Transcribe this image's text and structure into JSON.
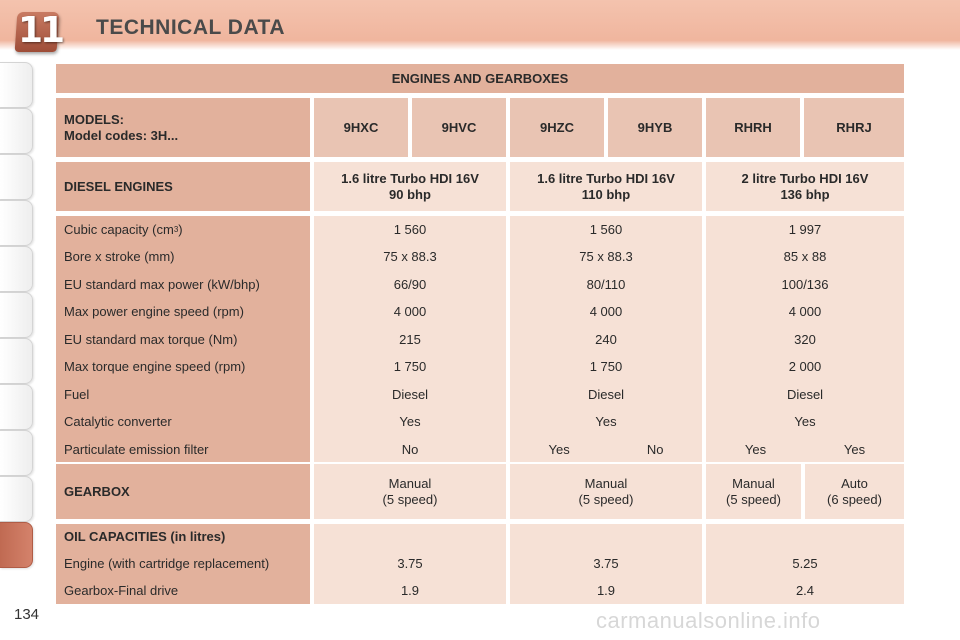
{
  "header": {
    "chapter_number": "11",
    "title": "TECHNICAL DATA"
  },
  "page_number": "134",
  "watermark": "carmanualsonline.info",
  "table": {
    "caption": "ENGINES AND GEARBOXES",
    "models_label_1": "MODELS:",
    "models_label_2": "Model codes: 3H...",
    "model_codes": [
      "9HXC",
      "9HVC",
      "9HZC",
      "9HYB",
      "RHRH",
      "RHRJ"
    ],
    "diesel_label": "DIESEL ENGINES",
    "engines": [
      {
        "name": "1.6 litre Turbo HDI 16V",
        "power": "90 bhp"
      },
      {
        "name": "1.6 litre Turbo HDI 16V",
        "power": "110 bhp"
      },
      {
        "name": "2 litre Turbo HDI 16V",
        "power": "136 bhp"
      }
    ],
    "spec_labels": {
      "cubic": "Cubic capacity (cm",
      "cubic_sup": "3",
      "cubic_end": ")",
      "bore": "Bore x stroke (mm)",
      "power": "EU standard max power (kW/bhp)",
      "power_speed": "Max power engine speed (rpm)",
      "torque": "EU standard max torque (Nm)",
      "torque_speed": "Max torque engine speed (rpm)",
      "fuel": "Fuel",
      "catalytic": "Catalytic converter",
      "particulate": "Particulate emission filter"
    },
    "spec_values": [
      {
        "cubic": "1 560",
        "bore": "75 x 88.3",
        "power": "66/90",
        "power_speed": "4 000",
        "torque": "215",
        "torque_speed": "1 750",
        "fuel": "Diesel",
        "catalytic": "Yes"
      },
      {
        "cubic": "1 560",
        "bore": "75 x 88.3",
        "power": "80/110",
        "power_speed": "4 000",
        "torque": "240",
        "torque_speed": "1 750",
        "fuel": "Diesel",
        "catalytic": "Yes"
      },
      {
        "cubic": "1 997",
        "bore": "85 x 88",
        "power": "100/136",
        "power_speed": "4 000",
        "torque": "320",
        "torque_speed": "2 000",
        "fuel": "Diesel",
        "catalytic": "Yes"
      }
    ],
    "particulate_values": {
      "col1": "No",
      "col2": [
        "Yes",
        "No"
      ],
      "col3": [
        "Yes",
        "Yes"
      ]
    },
    "gearbox_label": "GEARBOX",
    "gearbox_values": [
      {
        "type": "Manual",
        "speeds": "(5 speed)"
      },
      {
        "type": "Manual",
        "speeds": "(5 speed)"
      },
      {
        "type": "Manual",
        "speeds": "(5 speed)"
      },
      {
        "type": "Auto",
        "speeds": "(6 speed)"
      }
    ],
    "oil_label": "OIL CAPACITIES (in litres)",
    "oil_engine_label": "Engine (with cartridge replacement)",
    "oil_gearbox_label": "Gearbox-Final drive",
    "oil_values": [
      {
        "engine": "3.75",
        "gearbox": "1.9"
      },
      {
        "engine": "3.75",
        "gearbox": "1.9"
      },
      {
        "engine": "5.25",
        "gearbox": "2.4"
      }
    ]
  }
}
